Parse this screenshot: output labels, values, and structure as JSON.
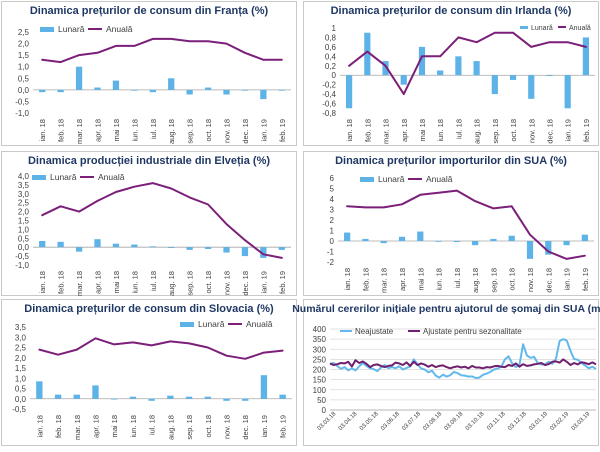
{
  "chart_data": [
    {
      "type": "bar+line",
      "title": "Dinamica prețurilor de consum din Franța (%)",
      "legend": [
        "Lunară",
        "Anuală"
      ],
      "legend_position": "top-left",
      "categories": [
        "ian. 18",
        "feb. 18",
        "mar. 18",
        "apr. 18",
        "mai 18",
        "iun. 18",
        "iul. 18",
        "aug. 18",
        "sep. 18",
        "oct. 18",
        "nov. 18",
        "dec. 18",
        "ian. 19",
        "feb. 19"
      ],
      "x_tick_labels": [
        "ian. 18",
        "feb. 18",
        "mar. 18",
        "apr. 18",
        "mai 18",
        "iun. 18",
        "iul. 18",
        "aug. 18",
        "sep. 18",
        "oct. 18",
        "nov. 18",
        "dec. 18",
        "ian. 19",
        "feb. 19"
      ],
      "series": [
        {
          "name": "Lunară",
          "type": "bar",
          "values": [
            -0.1,
            -0.1,
            1.0,
            0.1,
            0.4,
            0.0,
            -0.1,
            0.5,
            -0.2,
            0.1,
            -0.2,
            0.0,
            -0.4,
            0.0
          ]
        },
        {
          "name": "Anuală",
          "type": "line",
          "values": [
            1.3,
            1.2,
            1.5,
            1.6,
            1.9,
            1.9,
            2.2,
            2.2,
            2.1,
            2.1,
            2.0,
            1.6,
            1.3,
            1.3
          ]
        }
      ],
      "ylim": [
        -1.0,
        2.5
      ],
      "y_ticks": [
        -1.0,
        -0.5,
        0.0,
        0.5,
        1.0,
        1.5,
        2.0,
        2.5
      ],
      "y_tick_labels": [
        "-1,0",
        "-0,5",
        "0,0",
        "0,5",
        "1,0",
        "1,5",
        "2,0",
        "2,5"
      ],
      "grid": false
    },
    {
      "type": "bar+line",
      "title": "Dinamica prețurilor de consum din Irlanda (%)",
      "legend": [
        "Lunară",
        "Anuală"
      ],
      "legend_position": "top-right",
      "categories": [
        "ian. 18",
        "feb. 18",
        "mar. 18",
        "apr. 18",
        "mai 18",
        "iun. 18",
        "iul. 18",
        "aug. 18",
        "sep. 18",
        "oct. 18",
        "nov. 18",
        "dec. 18",
        "ian. 19",
        "feb. 19"
      ],
      "x_tick_labels": [
        "ian. 18",
        "feb. 18",
        "mar. 18",
        "apr. 18",
        "mai 18",
        "iun. 18",
        "iul. 18",
        "aug. 18",
        "sep. 18",
        "oct. 18",
        "nov. 18",
        "dec. 18",
        "ian. 19",
        "feb. 19"
      ],
      "series": [
        {
          "name": "Lunară",
          "type": "bar",
          "values": [
            -0.7,
            0.9,
            0.3,
            -0.2,
            0.6,
            0.1,
            0.4,
            0.3,
            -0.4,
            -0.1,
            -0.5,
            0.0,
            -0.7,
            0.8
          ]
        },
        {
          "name": "Anuală",
          "type": "line",
          "values": [
            0.2,
            0.5,
            0.2,
            -0.4,
            0.4,
            0.4,
            0.8,
            0.7,
            0.9,
            0.9,
            0.6,
            0.7,
            0.7,
            0.6
          ]
        }
      ],
      "ylim": [
        -0.8,
        1.0
      ],
      "y_ticks": [
        -0.8,
        -0.6,
        -0.4,
        -0.2,
        0.0,
        0.2,
        0.4,
        0.6,
        0.8,
        1.0
      ],
      "y_tick_labels": [
        "-0,8",
        "-0,6",
        "-0,4",
        "-0,2",
        "0",
        "0,2",
        "0,4",
        "0,6",
        "0,8",
        "1"
      ],
      "grid": false
    },
    {
      "type": "bar+line",
      "title": "Dinamica producției industriale din Elveția (%)",
      "legend": [
        "Lunară",
        "Anuală"
      ],
      "legend_position": "top-left",
      "categories": [
        "ian. 18",
        "feb. 18",
        "mar. 18",
        "apr. 18",
        "mai 18",
        "iun. 18",
        "iul. 18",
        "aug. 18",
        "sep. 18",
        "oct. 18",
        "nov. 18",
        "dec. 18",
        "ian. 19",
        "feb. 19"
      ],
      "x_tick_labels": [
        "ian. 18",
        "feb. 18",
        "mar. 18",
        "apr. 18",
        "mai 18",
        "iun. 18",
        "iul. 18",
        "aug. 18",
        "sep. 18",
        "oct. 18",
        "nov. 18",
        "dec. 18",
        "ian. 19",
        "feb. 19"
      ],
      "series": [
        {
          "name": "Lunară",
          "type": "bar",
          "values": [
            0.35,
            0.3,
            -0.25,
            0.45,
            0.2,
            0.15,
            0.05,
            0.0,
            -0.15,
            -0.1,
            -0.3,
            -0.5,
            -0.6,
            -0.15
          ]
        },
        {
          "name": "Anuală",
          "type": "line",
          "values": [
            1.8,
            2.3,
            2.0,
            2.6,
            3.1,
            3.4,
            3.6,
            3.3,
            2.8,
            2.4,
            1.3,
            0.4,
            -0.4,
            -0.6
          ]
        }
      ],
      "ylim": [
        -1.0,
        4.0
      ],
      "y_ticks": [
        -1.0,
        -0.5,
        0.0,
        0.5,
        1.0,
        1.5,
        2.0,
        2.5,
        3.0,
        3.5,
        4.0
      ],
      "y_tick_labels": [
        "-1,0",
        "-0,5",
        "0,0",
        "0,5",
        "1,0",
        "1,5",
        "2,0",
        "2,5",
        "3,0",
        "3,5",
        "4,0"
      ],
      "grid": false
    },
    {
      "type": "bar+line",
      "title": "Dinamica prețurilor importurilor din SUA (%)",
      "legend": [
        "Lunară",
        "Anuală"
      ],
      "legend_position": "top-left",
      "categories": [
        "ian. 18",
        "feb. 18",
        "mar. 18",
        "apr. 18",
        "mai 18",
        "iun. 18",
        "iul. 18",
        "aug. 18",
        "sep. 18",
        "oct. 18",
        "nov. 18",
        "dec. 18",
        "ian. 19",
        "feb. 19"
      ],
      "x_tick_labels": [
        "ian. 18",
        "feb. 18",
        "mar. 18",
        "apr. 18",
        "mai 18",
        "iun. 18",
        "iul. 18",
        "aug. 18",
        "sep. 18",
        "oct. 18",
        "nov. 18",
        "dec. 18",
        "ian. 19",
        "feb. 19"
      ],
      "series": [
        {
          "name": "Lunară",
          "type": "bar",
          "values": [
            0.8,
            0.2,
            -0.2,
            0.4,
            0.9,
            0.0,
            -0.1,
            -0.4,
            0.2,
            0.5,
            -1.7,
            -1.3,
            -0.4,
            0.6
          ]
        },
        {
          "name": "Anuală",
          "type": "line",
          "values": [
            3.3,
            3.2,
            3.2,
            3.5,
            4.4,
            4.6,
            4.8,
            3.8,
            3.1,
            3.3,
            0.6,
            -1.0,
            -1.7,
            -1.4
          ]
        }
      ],
      "ylim": [
        -2,
        6
      ],
      "y_ticks": [
        -2,
        -1,
        0,
        1,
        2,
        3,
        4,
        5,
        6
      ],
      "y_tick_labels": [
        "-2",
        "-1",
        "0",
        "1",
        "2",
        "3",
        "4",
        "5",
        "6"
      ],
      "grid": false
    },
    {
      "type": "bar+line",
      "title": "Dinamica prețurilor de consum din Slovacia (%)",
      "legend": [
        "Lunară",
        "Anuală"
      ],
      "legend_position": "top-right",
      "categories": [
        "ian. 18",
        "feb. 18",
        "mar. 18",
        "apr. 18",
        "mai 18",
        "iun. 18",
        "iul. 18",
        "aug. 18",
        "sep. 18",
        "oct. 18",
        "nov. 18",
        "dec. 18",
        "ian. 19",
        "feb. 19"
      ],
      "x_tick_labels": [
        "ian. 18",
        "feb. 18",
        "mar. 18",
        "apr. 18",
        "mai 18",
        "iun. 18",
        "iul. 18",
        "aug. 18",
        "sep. 18",
        "oct. 18",
        "nov. 18",
        "dec. 18",
        "ian. 19",
        "feb. 19"
      ],
      "series": [
        {
          "name": "Lunară",
          "type": "bar",
          "values": [
            0.85,
            0.2,
            0.2,
            0.65,
            0.0,
            0.1,
            -0.1,
            0.15,
            0.1,
            0.1,
            -0.1,
            -0.1,
            1.15,
            0.2
          ]
        },
        {
          "name": "Anuală",
          "type": "line",
          "values": [
            2.4,
            2.15,
            2.4,
            2.95,
            2.65,
            2.75,
            2.6,
            2.8,
            2.7,
            2.5,
            2.1,
            1.95,
            2.25,
            2.35
          ]
        }
      ],
      "ylim": [
        -0.5,
        3.5
      ],
      "y_ticks": [
        -0.5,
        0.0,
        0.5,
        1.0,
        1.5,
        2.0,
        2.5,
        3.0,
        3.5
      ],
      "y_tick_labels": [
        "-0,5",
        "0,0",
        "0,5",
        "1,0",
        "1,5",
        "2,0",
        "2,5",
        "3,0",
        "3,5"
      ],
      "grid": false
    },
    {
      "type": "line",
      "title": "Numărul cererilor inițiale pentru ajutorul de șomaj din SUA (mii)",
      "legend": [
        "Neajustate",
        "Ajustate pentru sezonalitate"
      ],
      "legend_position": "top",
      "x_tick_labels": [
        "03.03.18",
        "03.04.18",
        "03.05.18",
        "03.06.18",
        "03.07.18",
        "03.08.18",
        "03.09.18",
        "03.10.18",
        "03.11.18",
        "03.12.18",
        "03.01.19",
        "03.02.19",
        "03.03.19"
      ],
      "series": [
        {
          "name": "Neajustate",
          "type": "line",
          "values": [
            226,
            232,
            218,
            203,
            212,
            196,
            205,
            196,
            216,
            232,
            218,
            206,
            202,
            192,
            210,
            222,
            206,
            212,
            206,
            216,
            200,
            208,
            215,
            250,
            226,
            205,
            200,
            186,
            194,
            170,
            160,
            175,
            165,
            172,
            188,
            182,
            172,
            170,
            165,
            166,
            158,
            160,
            174,
            180,
            188,
            200,
            205,
            214,
            250,
            265,
            230,
            212,
            224,
            325,
            270,
            258,
            262,
            232,
            225,
            224,
            238,
            228,
            252,
            340,
            350,
            342,
            292,
            252,
            248,
            232,
            220,
            206,
            214,
            202
          ]
        },
        {
          "name": "Ajustate pentru sezonalitate",
          "type": "line",
          "values": [
            230,
            222,
            226,
            232,
            230,
            238,
            215,
            246,
            232,
            240,
            228,
            212,
            222,
            225,
            218,
            212,
            218,
            220,
            234,
            230,
            222,
            235,
            218,
            238,
            222,
            230,
            224,
            214,
            222,
            212,
            218,
            220,
            212,
            206,
            212,
            216,
            210,
            214,
            206,
            218,
            210,
            210,
            206,
            212,
            210,
            216,
            218,
            214,
            212,
            222,
            218,
            230,
            214,
            226,
            218,
            220,
            225,
            228,
            232,
            222,
            226,
            238,
            240,
            234,
            250,
            238,
            222,
            232,
            225,
            236,
            232,
            226,
            235,
            225
          ]
        }
      ],
      "ylim": [
        0,
        400
      ],
      "y_ticks": [
        0,
        50,
        100,
        150,
        200,
        250,
        300,
        350,
        400
      ],
      "y_tick_labels": [
        "0",
        "50",
        "100",
        "150",
        "200",
        "250",
        "300",
        "350",
        "400"
      ],
      "grid": true
    }
  ],
  "colors": {
    "bar": "#5DB3E8",
    "annual_line": "#7B1F7A",
    "unadjusted_line": "#63B8EC",
    "adjusted_line": "#6E1F6E",
    "title": "#1F3864",
    "panel_border": "#C9C9C9",
    "axis": "#A6A6A6",
    "gridline": "#D9D9D9",
    "text": "#404040"
  }
}
